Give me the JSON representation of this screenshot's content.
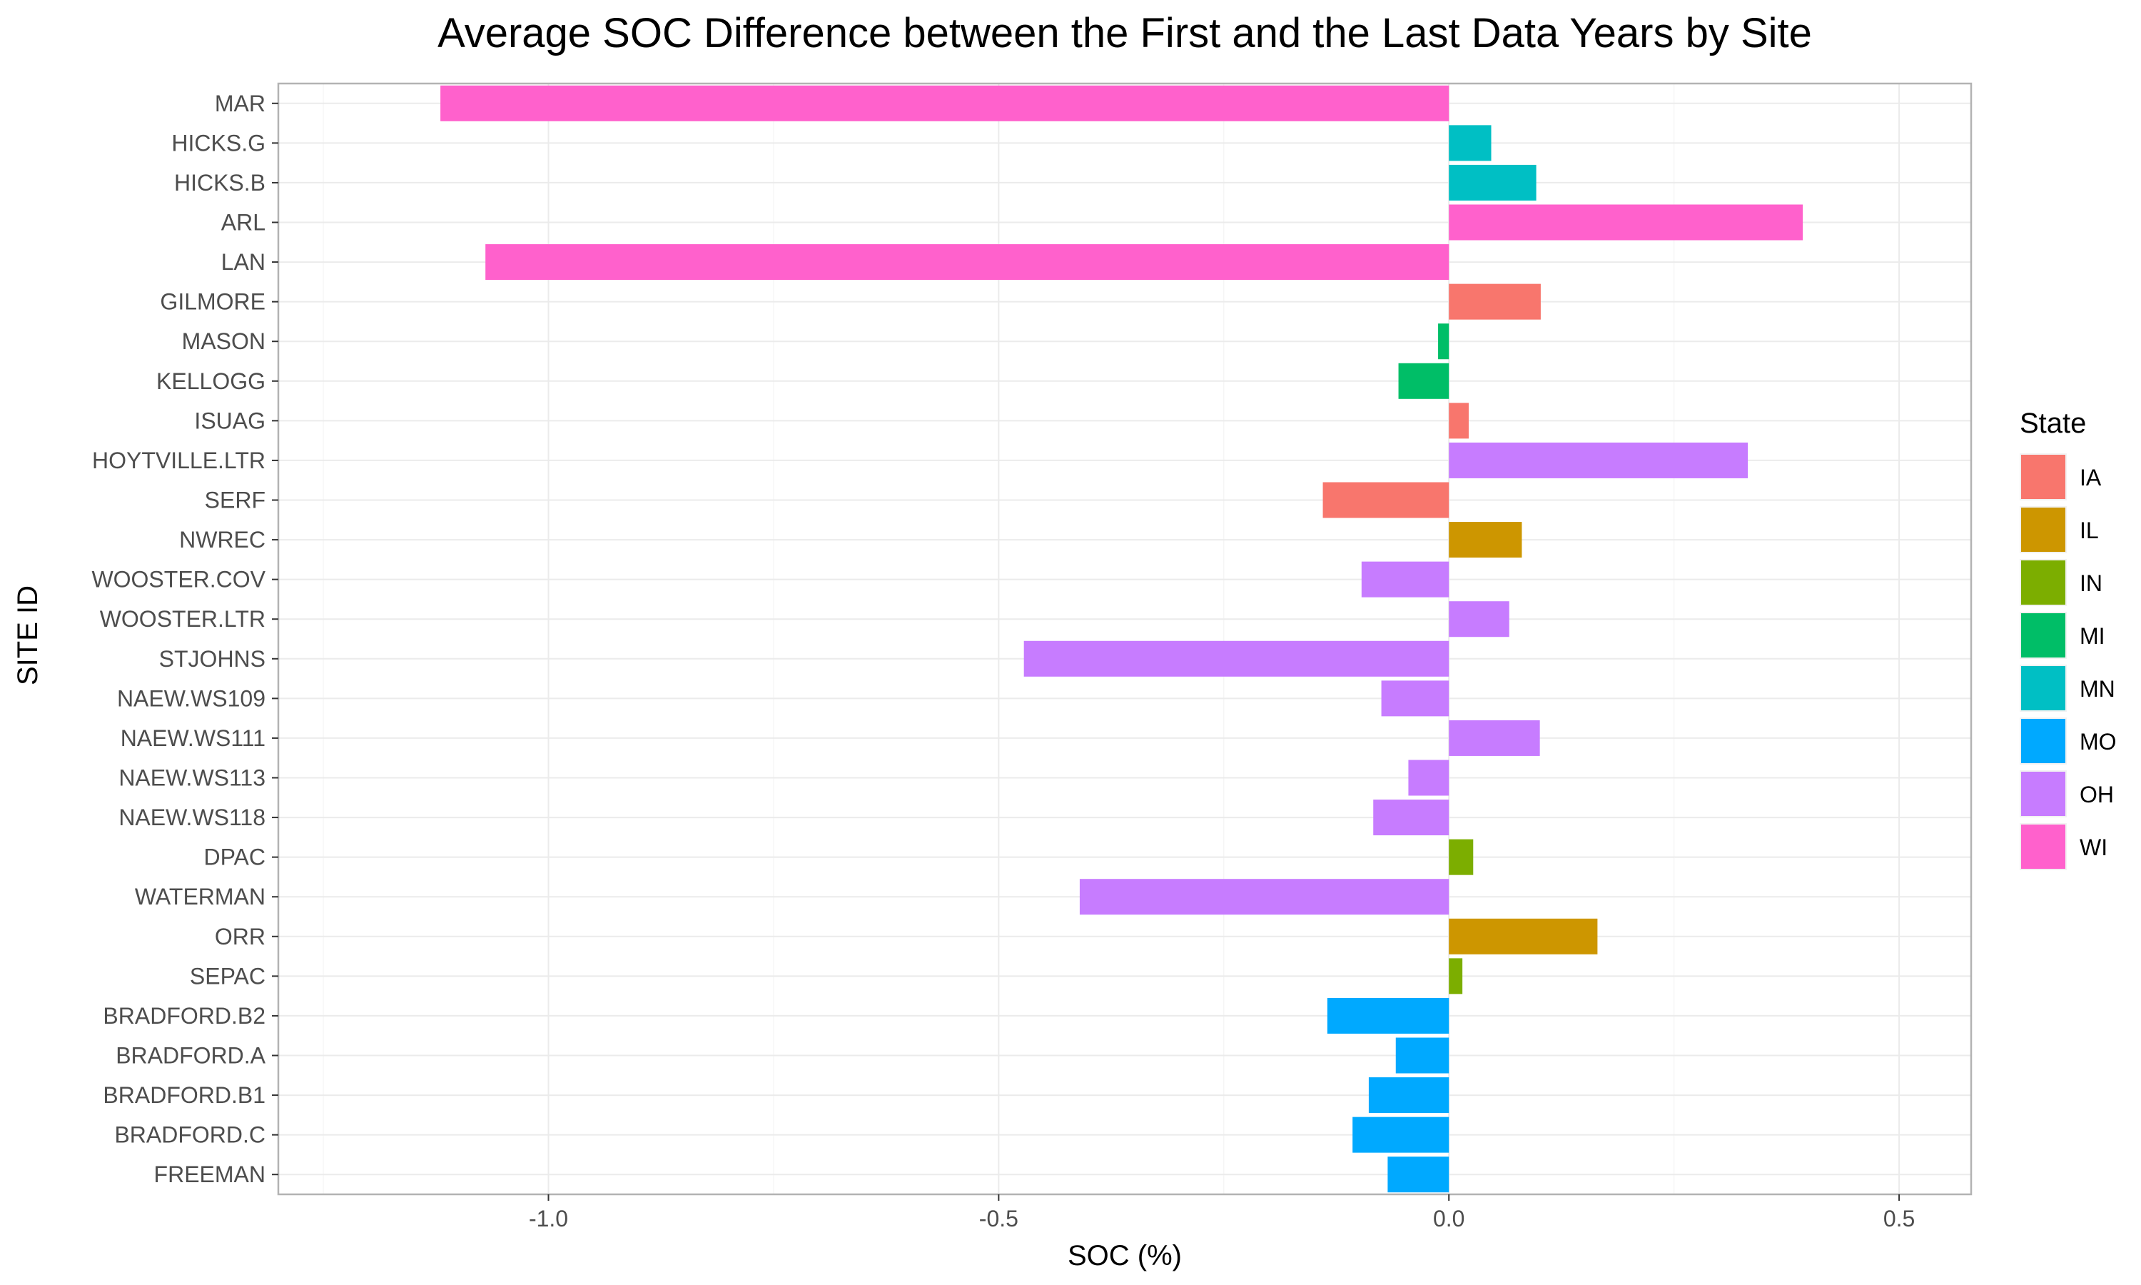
{
  "chart_data": {
    "type": "bar",
    "orientation": "horizontal",
    "title": "Average SOC Difference between the First and the Last Data Years by Site",
    "xlabel": "SOC (%)",
    "ylabel": "SITE ID",
    "xlim": [
      -1.3,
      0.58
    ],
    "x_ticks": [
      -1.0,
      -0.5,
      0.0,
      0.5
    ],
    "x_tick_labels": [
      "-1.0",
      "-0.5",
      "0.0",
      "0.5"
    ],
    "grid": true,
    "legend": {
      "title": "State",
      "position": "right",
      "entries": [
        {
          "label": "IA",
          "color": "#F8766D"
        },
        {
          "label": "IL",
          "color": "#CD9600"
        },
        {
          "label": "IN",
          "color": "#7CAE00"
        },
        {
          "label": "MI",
          "color": "#00BE67"
        },
        {
          "label": "MN",
          "color": "#00BFC4"
        },
        {
          "label": "MO",
          "color": "#00A9FF"
        },
        {
          "label": "OH",
          "color": "#C77CFF"
        },
        {
          "label": "WI",
          "color": "#FF61CC"
        }
      ]
    },
    "categories": [
      "MAR",
      "HICKS.G",
      "HICKS.B",
      "ARL",
      "LAN",
      "GILMORE",
      "MASON",
      "KELLOGG",
      "ISUAG",
      "HOYTVILLE.LTR",
      "SERF",
      "NWREC",
      "WOOSTER.COV",
      "WOOSTER.LTR",
      "STJOHNS",
      "NAEW.WS109",
      "NAEW.WS111",
      "NAEW.WS113",
      "NAEW.WS118",
      "DPAC",
      "WATERMAN",
      "ORR",
      "SEPAC",
      "BRADFORD.B2",
      "BRADFORD.A",
      "BRADFORD.B1",
      "BRADFORD.C",
      "FREEMAN"
    ],
    "values": [
      -1.12,
      0.047,
      0.097,
      0.393,
      -1.07,
      0.102,
      -0.012,
      -0.056,
      0.022,
      0.332,
      -0.14,
      0.081,
      -0.097,
      0.067,
      -0.472,
      -0.075,
      0.101,
      -0.045,
      -0.084,
      0.027,
      -0.41,
      0.165,
      0.015,
      -0.135,
      -0.059,
      -0.089,
      -0.107,
      -0.068
    ],
    "states": [
      "WI",
      "MN",
      "MN",
      "WI",
      "WI",
      "IA",
      "MI",
      "MI",
      "IA",
      "OH",
      "IA",
      "IL",
      "OH",
      "OH",
      "OH",
      "OH",
      "OH",
      "OH",
      "OH",
      "IN",
      "OH",
      "IL",
      "IN",
      "MO",
      "MO",
      "MO",
      "MO",
      "MO"
    ]
  }
}
